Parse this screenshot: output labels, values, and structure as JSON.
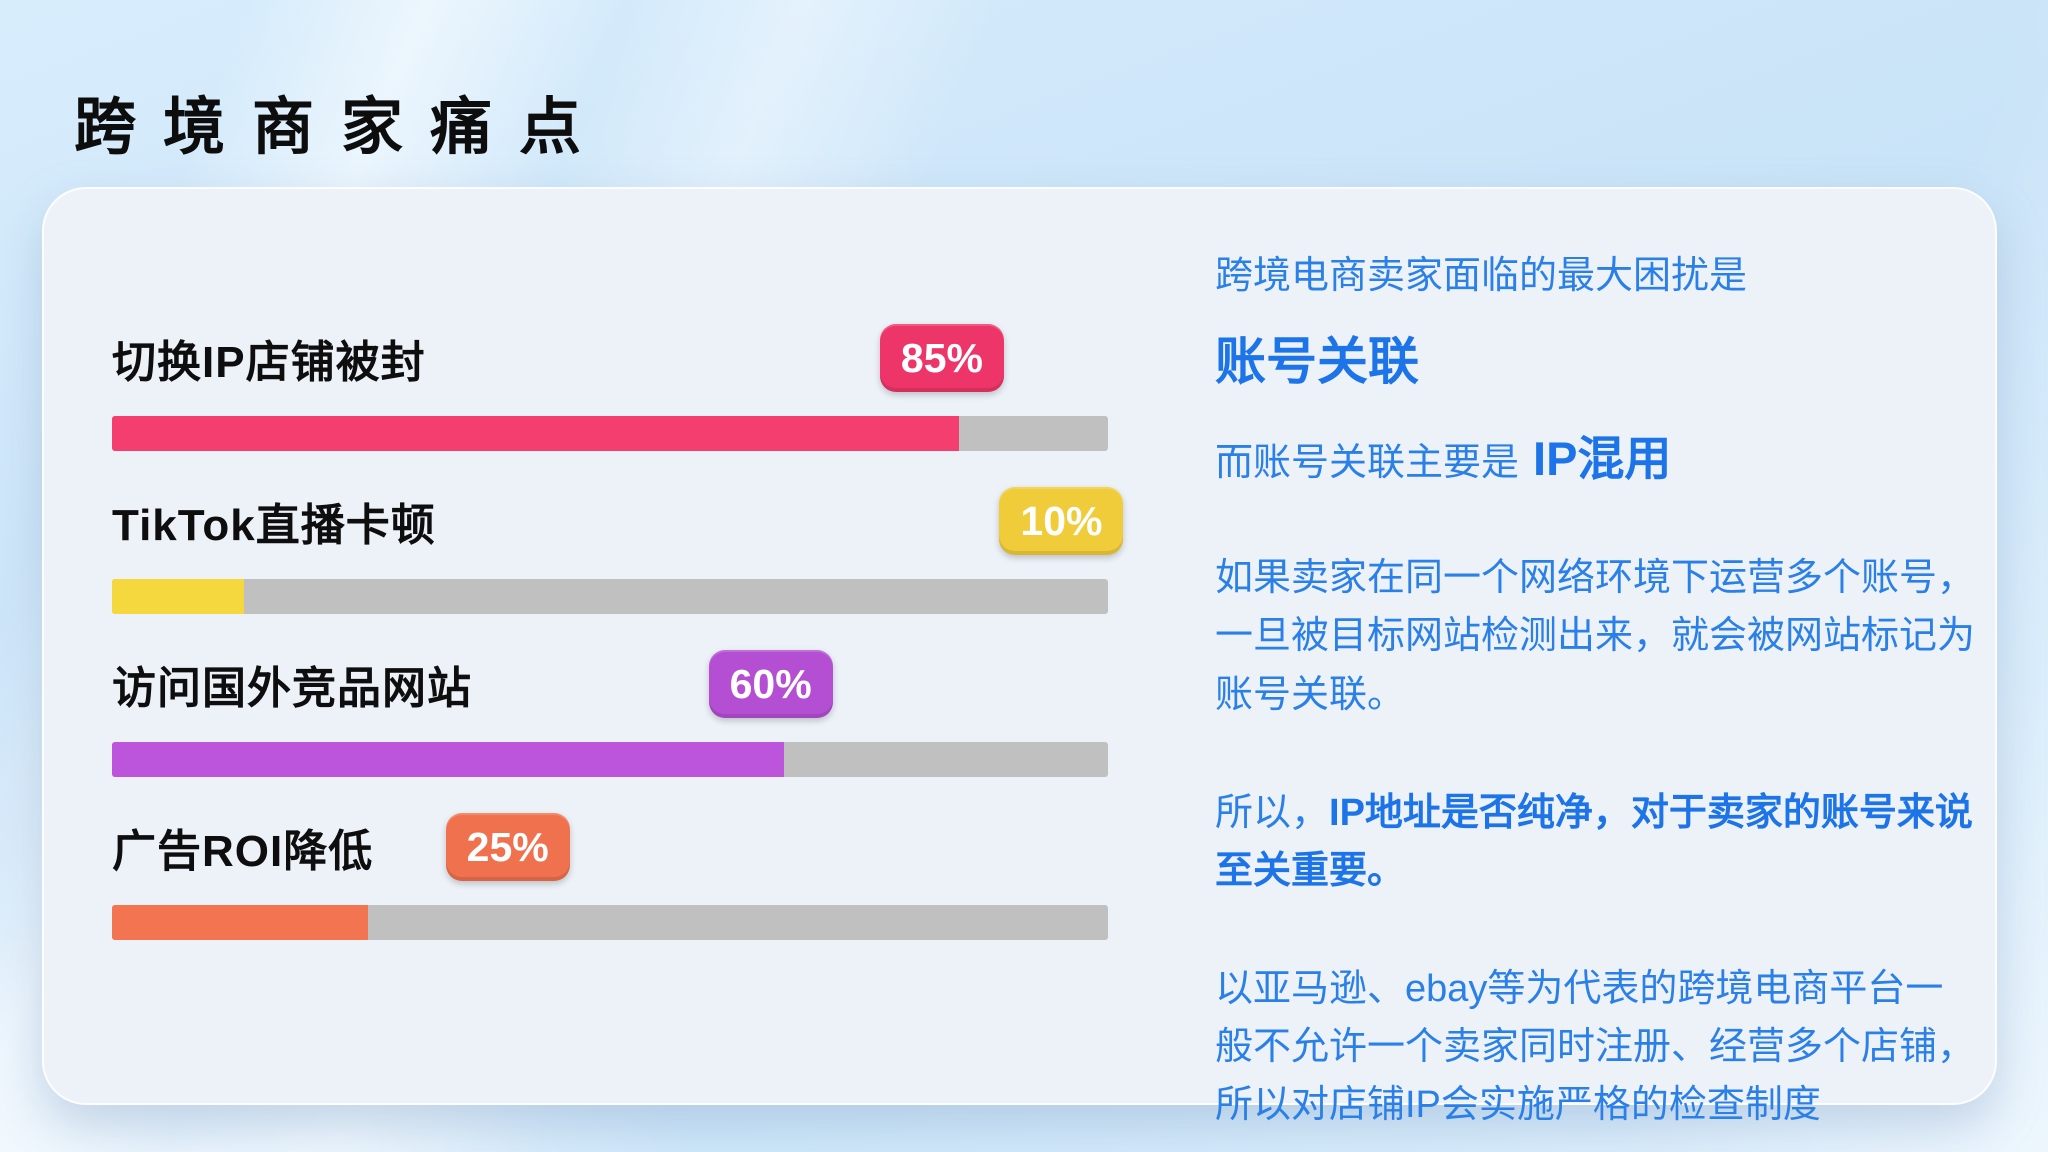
{
  "page": {
    "title": "跨境商家痛点"
  },
  "colors": {
    "text-blue": "#2b80e8",
    "strong-blue": "#1d74e8",
    "track-gray": "#c0c0c1",
    "card-bg": "#edf2f9",
    "page-bg": "#cde7fa",
    "title-black": "#0d0d0d"
  },
  "chart_data": {
    "type": "bar",
    "orientation": "horizontal",
    "title": "",
    "xlabel": "",
    "ylabel": "",
    "xlim": [
      0,
      100
    ],
    "grid": false,
    "legend": false,
    "categories": [
      "切换IP店铺被封",
      "TikTok直播卡顿",
      "访问国外竞品网站",
      "广告ROI降低"
    ],
    "values": [
      85,
      10,
      60,
      25
    ],
    "value_labels": [
      "85%",
      "10%",
      "60%",
      "25%"
    ],
    "items": [
      {
        "label": "切换IP店铺被封",
        "value": 85,
        "badge": "85%",
        "bar_color": "#f43e6f",
        "badge_color": "#ee3569",
        "fill_pct": 85,
        "badge_left_pct": 77.1
      },
      {
        "label": "TikTok直播卡顿",
        "value": 10,
        "badge": "10%",
        "bar_color": "#f5d73e",
        "badge_color": "#f0cc3a",
        "fill_pct": 13.3,
        "badge_left_pct": 89.1
      },
      {
        "label": "访问国外竞品网站",
        "value": 60,
        "badge": "60%",
        "bar_color": "#bd55dc",
        "badge_color": "#b44fd4",
        "fill_pct": 67.5,
        "badge_left_pct": 59.9
      },
      {
        "label": "广告ROI降低",
        "value": 25,
        "badge": "25%",
        "bar_color": "#f37450",
        "badge_color": "#f0714d",
        "fill_pct": 25.7,
        "badge_left_pct": 33.5
      }
    ]
  },
  "aside": {
    "intro": "跨境电商卖家面临的最大困扰是",
    "headline": "账号关联",
    "sub_prefix": "而账号关联主要是",
    "sub_highlight": "IP混用",
    "para1": "如果卖家在同一个网络环境下运营多个账号，一旦被目标网站检测出来，就会被网站标记为账号关联。",
    "para2_prefix": "所以，",
    "para2_bold": "IP地址是否纯净，对于卖家的账号来说至关重要。",
    "para3": "以亚马逊、ebay等为代表的跨境电商平台一般不允许一个卖家同时注册、经营多个店铺，所以对店铺IP会实施严格的检查制度"
  }
}
